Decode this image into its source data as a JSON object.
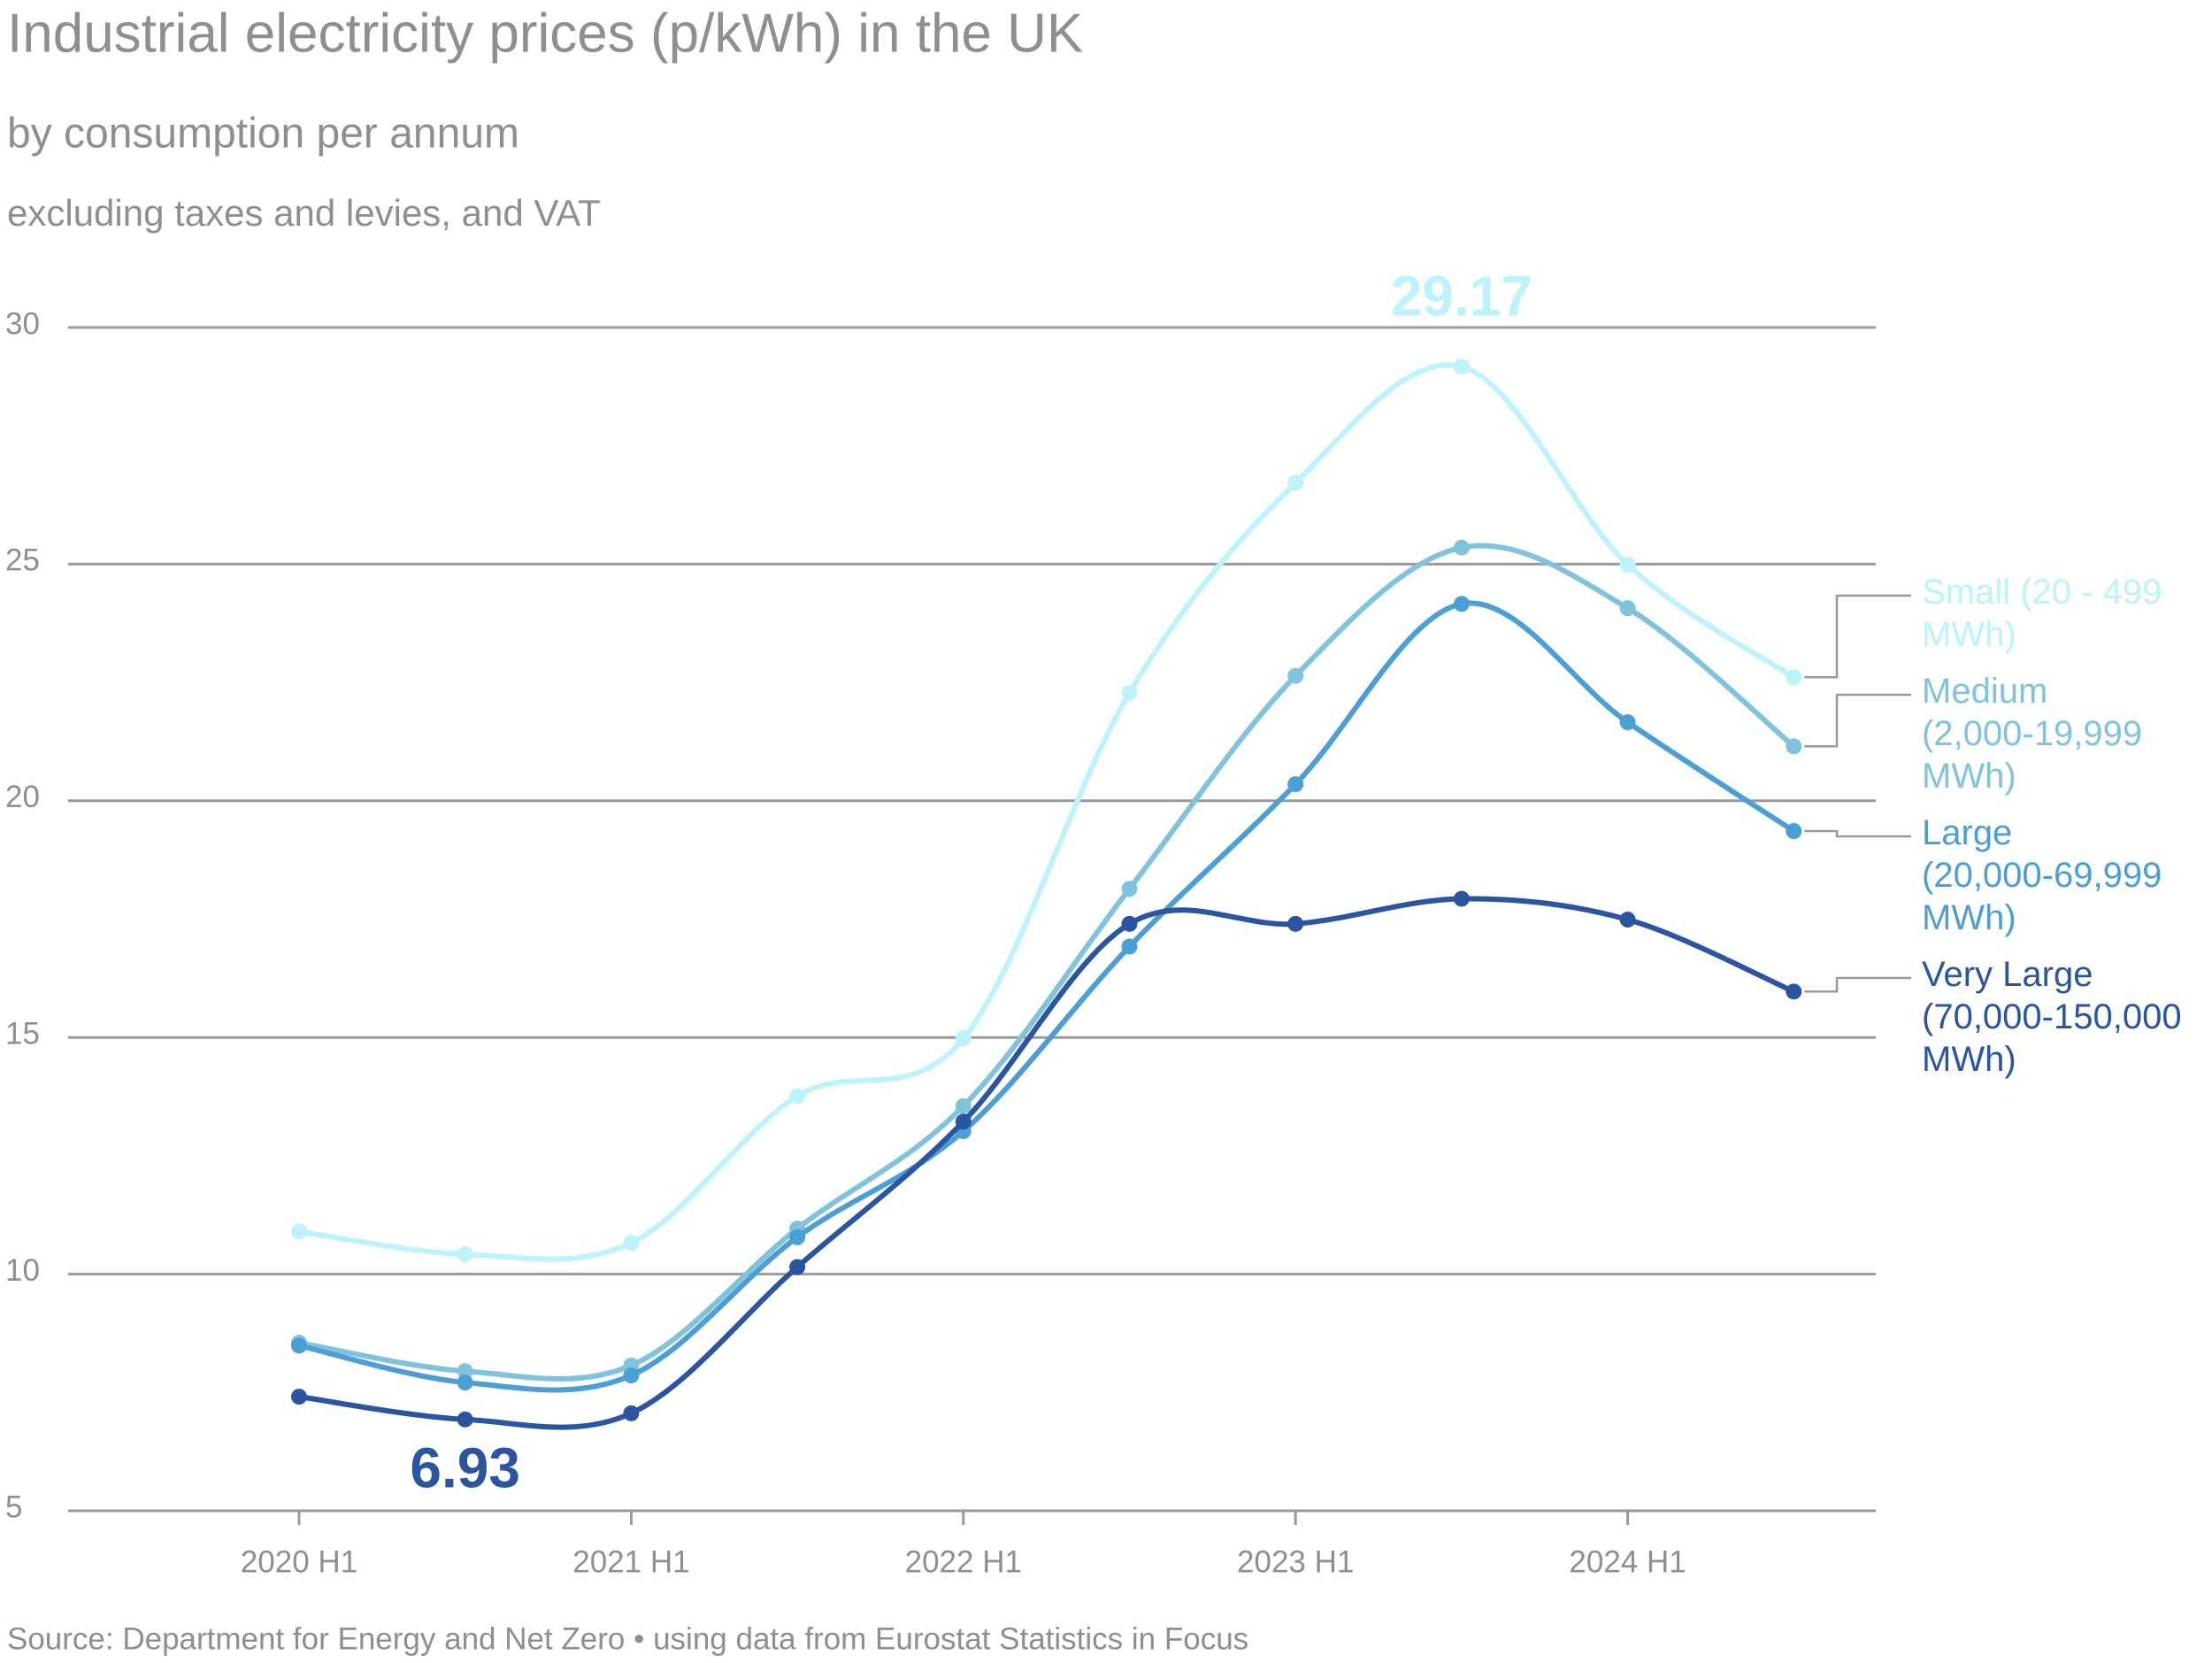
{
  "chart_data": {
    "type": "line",
    "title": "Industrial electricity prices (p/kWh) in the UK",
    "subtitles": [
      "by consumption per annum",
      "excluding taxes and levies, and VAT"
    ],
    "source": "Source: Department for Energy and Net Zero • using data from Eurostat Statistics in Focus",
    "categories": [
      "2020 H1",
      null,
      "2021 H1",
      null,
      "2022 H1",
      null,
      "2023 H1",
      null,
      "2024 H1",
      null
    ],
    "series": [
      {
        "name": "Small (20 - 499 MWh)",
        "color": "#bdf3fb",
        "values": [
          10.9,
          10.42,
          10.66,
          13.76,
          14.98,
          22.28,
          26.72,
          29.17,
          24.99,
          22.61
        ],
        "value_labels": [
          null,
          null,
          null,
          null,
          null,
          null,
          null,
          "29.17",
          null,
          null
        ]
      },
      {
        "name": "Medium (2,000-19,999 MWh)",
        "color": "#7fc3dc",
        "values": [
          8.55,
          7.95,
          8.07,
          10.96,
          13.55,
          18.14,
          22.64,
          25.35,
          24.07,
          21.15
        ]
      },
      {
        "name": "Large (20,000-69,999 MWh)",
        "color": "#4c9fd4",
        "values": [
          8.49,
          7.71,
          7.86,
          10.78,
          13.02,
          16.92,
          20.35,
          24.16,
          21.66,
          19.36
        ]
      },
      {
        "name": "Very Large (70,000-150,000 MWh)",
        "color": "#2b55a0",
        "values": [
          7.41,
          6.93,
          7.06,
          10.15,
          13.22,
          17.4,
          17.4,
          17.93,
          17.49,
          15.97
        ],
        "value_labels": [
          null,
          "6.93",
          null,
          null,
          null,
          null,
          null,
          null,
          null,
          null
        ]
      }
    ],
    "ylim": [
      5,
      30
    ],
    "yticks": [
      5,
      10,
      15,
      20,
      25,
      30
    ],
    "grid": true
  }
}
